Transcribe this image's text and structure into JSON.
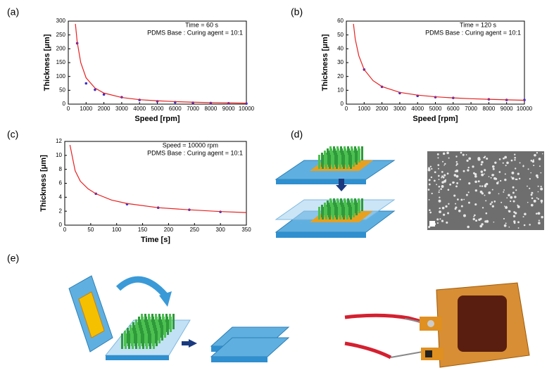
{
  "panel_labels": [
    "(a)",
    "(b)",
    "(c)",
    "(d)",
    "(e)"
  ],
  "chart_data": [
    {
      "type": "scatter-fit",
      "xlabel": "Speed [rpm]",
      "ylabel": "Thickness [μm]",
      "annotations": [
        "Time = 60 s",
        "PDMS Base : Curing agent = 10:1"
      ],
      "xlim": [
        0,
        10000
      ],
      "xticks": [
        0,
        1000,
        2000,
        3000,
        4000,
        5000,
        6000,
        7000,
        8000,
        9000,
        10000
      ],
      "ylim": [
        0,
        300
      ],
      "yticks": [
        0,
        50,
        100,
        150,
        200,
        250,
        300
      ],
      "series": [
        {
          "style": "markers",
          "color": "#3a2fd0",
          "x": [
            500,
            1000,
            1500,
            2000,
            3000,
            4000,
            5000,
            6000,
            7000,
            8000,
            9000,
            10000
          ],
          "values": [
            220,
            75,
            52,
            35,
            25,
            15,
            10,
            7,
            5,
            4,
            3,
            2
          ]
        },
        {
          "style": "line",
          "color": "#e82020",
          "x": [
            400,
            500,
            700,
            1000,
            1500,
            2000,
            3000,
            4000,
            5000,
            6000,
            7000,
            8000,
            9000,
            10000
          ],
          "values": [
            290,
            225,
            150,
            95,
            58,
            40,
            24,
            16,
            12,
            9,
            7,
            5.5,
            4.5,
            3.5
          ]
        }
      ]
    },
    {
      "type": "scatter-fit",
      "xlabel": "Speed [rpm]",
      "ylabel": "Thickness [μm]",
      "annotations": [
        "Time = 120 s",
        "PDMS Base : Curing agent = 10:1"
      ],
      "xlim": [
        0,
        10000
      ],
      "xticks": [
        0,
        1000,
        2000,
        3000,
        4000,
        5000,
        6000,
        7000,
        8000,
        9000,
        10000
      ],
      "ylim": [
        0,
        60
      ],
      "yticks": [
        0,
        10,
        20,
        30,
        40,
        50,
        60
      ],
      "series": [
        {
          "style": "markers",
          "color": "#3a2fd0",
          "x": [
            1000,
            2000,
            3000,
            4000,
            5000,
            6000,
            8000,
            9000,
            10000
          ],
          "values": [
            25,
            12.5,
            8,
            6,
            5,
            4.5,
            3.5,
            3,
            3
          ]
        },
        {
          "style": "line",
          "color": "#e82020",
          "x": [
            400,
            500,
            700,
            1000,
            1500,
            2000,
            3000,
            4000,
            5000,
            6000,
            7000,
            8000,
            9000,
            10000
          ],
          "values": [
            58,
            47,
            35,
            25,
            17,
            12.7,
            8.5,
            6.5,
            5.3,
            4.5,
            3.9,
            3.5,
            3.1,
            2.8
          ]
        }
      ]
    },
    {
      "type": "scatter-fit",
      "xlabel": "Time [s]",
      "ylabel": "Thickness [μm]",
      "annotations": [
        "Speed = 10000 rpm",
        "PDMS Base : Curing agent = 10:1"
      ],
      "xlim": [
        0,
        350
      ],
      "xticks": [
        0,
        50,
        100,
        150,
        200,
        250,
        300,
        350
      ],
      "ylim": [
        0,
        12
      ],
      "yticks": [
        0,
        2,
        4,
        6,
        8,
        10,
        12
      ],
      "series": [
        {
          "style": "markers",
          "color": "#3a2fd0",
          "x": [
            60,
            120,
            180,
            240,
            300
          ],
          "values": [
            4.5,
            3,
            2.5,
            2.2,
            1.9
          ]
        },
        {
          "style": "line",
          "color": "#e82020",
          "x": [
            10,
            20,
            30,
            45,
            60,
            90,
            120,
            180,
            240,
            300,
            350
          ],
          "values": [
            11.5,
            7.8,
            6.3,
            5.2,
            4.5,
            3.6,
            3.1,
            2.5,
            2.2,
            1.95,
            1.8
          ]
        }
      ]
    }
  ]
}
